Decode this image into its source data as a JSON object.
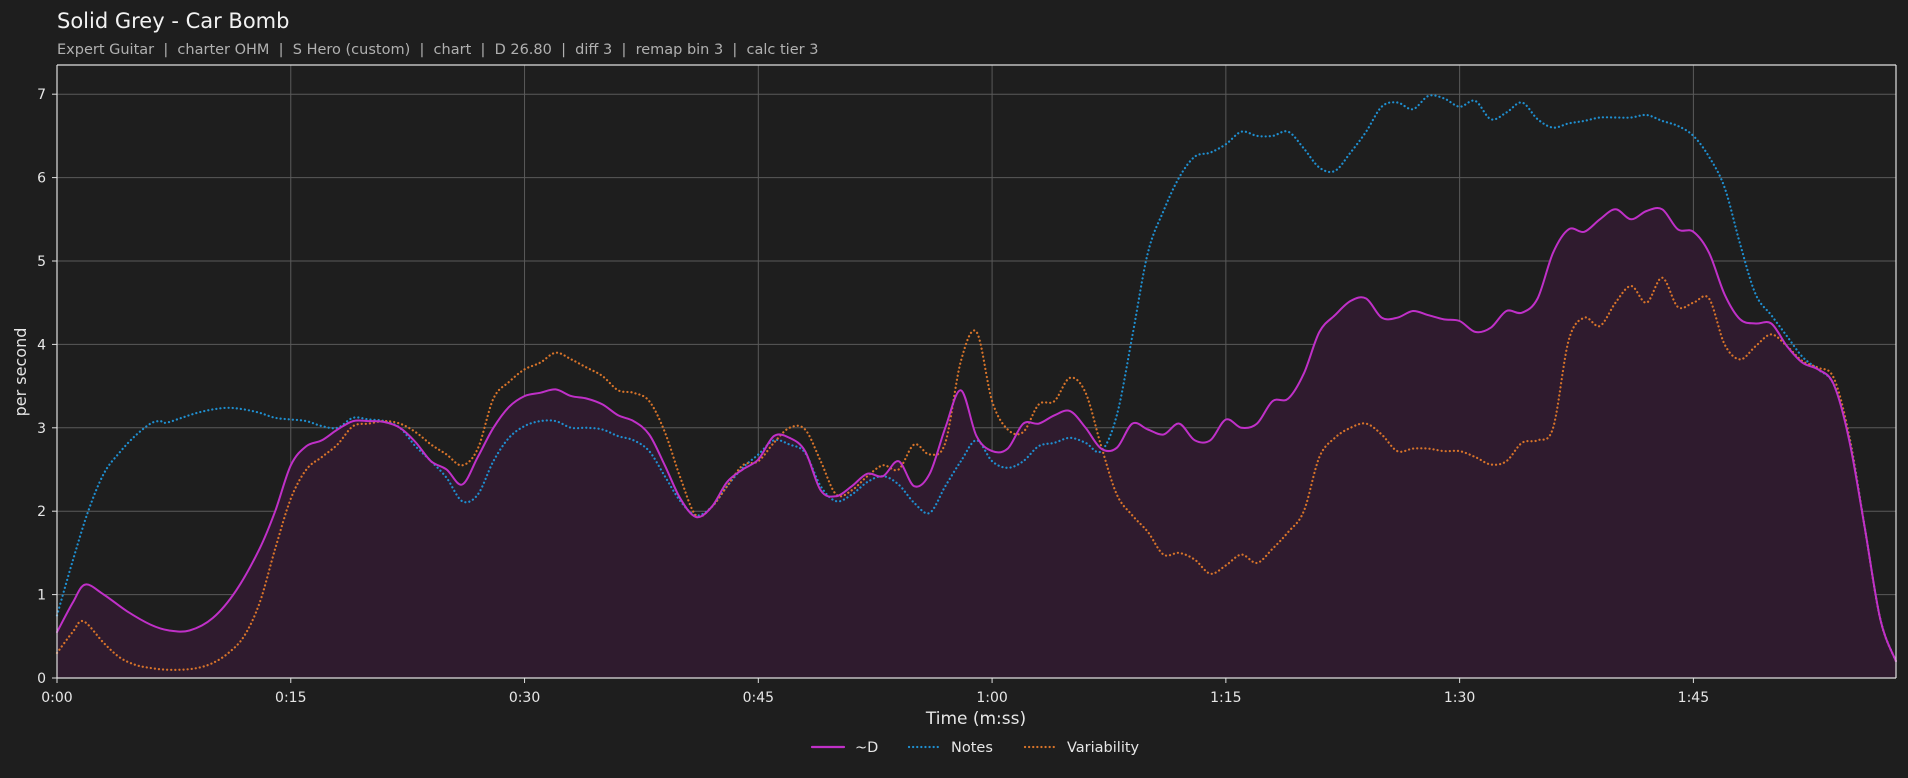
{
  "chart_data": {
    "type": "line",
    "title": "Solid Grey - Car Bomb",
    "subtitle": "Expert Guitar  |  charter OHM  |  S Hero (custom)  |  chart  |  D 26.80  |  diff 3  |  remap bin 3  |  calc tier 3",
    "xlabel": "Time (m:ss)",
    "ylabel": "per second",
    "xlim": [
      0,
      118
    ],
    "ylim": [
      0,
      7.35
    ],
    "x_ticks": [
      0,
      15,
      30,
      45,
      60,
      75,
      90,
      105
    ],
    "x_tick_labels": [
      "0:00",
      "0:15",
      "0:30",
      "0:45",
      "1:00",
      "1:15",
      "1:30",
      "1:45"
    ],
    "y_ticks": [
      0,
      1,
      2,
      3,
      4,
      5,
      6,
      7
    ],
    "y_tick_labels": [
      "0",
      "1",
      "2",
      "3",
      "4",
      "5",
      "6",
      "7"
    ],
    "grid": true,
    "legend_position": "bottom-center",
    "series": [
      {
        "name": "~D",
        "style": "solid",
        "fill": true,
        "color": "#c030c8",
        "x": [
          0,
          1,
          1.8,
          3,
          4.5,
          6,
          7.2,
          8.5,
          10,
          11.5,
          13,
          14,
          15,
          16,
          17,
          18,
          19,
          20,
          21,
          22,
          23,
          24,
          25,
          26,
          27,
          28,
          29,
          30,
          31,
          32,
          33,
          34,
          35,
          36,
          37,
          38,
          39,
          40,
          41,
          42,
          43,
          44,
          45,
          46,
          47,
          48,
          49,
          50,
          51,
          52,
          53,
          54,
          55,
          56,
          57,
          58,
          59,
          60,
          61,
          62,
          63,
          64,
          65,
          66,
          67,
          68,
          69,
          70,
          71,
          72,
          73,
          74,
          75,
          76,
          77,
          78,
          79,
          80,
          81,
          82,
          83,
          84,
          85,
          86,
          87,
          88,
          89,
          90,
          91,
          92,
          93,
          94,
          95,
          96,
          97,
          98,
          99,
          100,
          101,
          102,
          103,
          104,
          105,
          106,
          107,
          108,
          109,
          110,
          111,
          112,
          113,
          114,
          115,
          116,
          117,
          118
        ],
        "values": [
          0.55,
          0.9,
          1.12,
          1.0,
          0.8,
          0.64,
          0.57,
          0.57,
          0.72,
          1.05,
          1.55,
          2.0,
          2.55,
          2.78,
          2.85,
          2.98,
          3.08,
          3.08,
          3.07,
          3.0,
          2.83,
          2.6,
          2.5,
          2.32,
          2.65,
          3.0,
          3.25,
          3.38,
          3.42,
          3.46,
          3.38,
          3.35,
          3.28,
          3.15,
          3.08,
          2.92,
          2.55,
          2.15,
          1.93,
          2.05,
          2.35,
          2.5,
          2.62,
          2.9,
          2.88,
          2.72,
          2.25,
          2.18,
          2.3,
          2.45,
          2.42,
          2.6,
          2.3,
          2.45,
          3.0,
          3.45,
          2.9,
          2.72,
          2.75,
          3.05,
          3.05,
          3.15,
          3.2,
          3.0,
          2.75,
          2.76,
          3.05,
          2.98,
          2.92,
          3.05,
          2.85,
          2.85,
          3.1,
          3.0,
          3.05,
          3.32,
          3.35,
          3.65,
          4.15,
          4.35,
          4.52,
          4.55,
          4.32,
          4.32,
          4.4,
          4.35,
          4.3,
          4.28,
          4.15,
          4.2,
          4.4,
          4.38,
          4.55,
          5.1,
          5.38,
          5.35,
          5.5,
          5.62,
          5.5,
          5.6,
          5.62,
          5.38,
          5.35,
          5.1,
          4.6,
          4.3,
          4.25,
          4.25,
          3.98,
          3.78,
          3.7,
          3.52,
          2.85,
          1.8,
          0.7,
          0.2
        ]
      },
      {
        "name": "Notes",
        "style": "dotted",
        "fill": false,
        "color": "#1f8fd0",
        "x": [
          0,
          1,
          2,
          3,
          4,
          5,
          6,
          6.6,
          7,
          8,
          9,
          10,
          11,
          12,
          13,
          14,
          15,
          16,
          17,
          18,
          19,
          20,
          21,
          22,
          23,
          24,
          25,
          26,
          27,
          28,
          29,
          30,
          31,
          32,
          33,
          34,
          35,
          36,
          37,
          38,
          39,
          40,
          41,
          42,
          43,
          44,
          45,
          46,
          47,
          48,
          49,
          50,
          51,
          52,
          53,
          54,
          55,
          56,
          57,
          58,
          59,
          60,
          61,
          62,
          63,
          64,
          65,
          66,
          67,
          68,
          69,
          70,
          71,
          72,
          73,
          74,
          75,
          76,
          77,
          78,
          79,
          80,
          81,
          82,
          83,
          84,
          85,
          86,
          87,
          88,
          89,
          90,
          91,
          92,
          93,
          94,
          95,
          96,
          97,
          98,
          99,
          100,
          101,
          102,
          103,
          104,
          105,
          106,
          107,
          108,
          109,
          110,
          111,
          112,
          113,
          114,
          115,
          116,
          117,
          118
        ],
        "values": [
          0.75,
          1.4,
          2.0,
          2.45,
          2.7,
          2.9,
          3.05,
          3.08,
          3.06,
          3.12,
          3.18,
          3.22,
          3.24,
          3.22,
          3.18,
          3.12,
          3.1,
          3.08,
          3.02,
          3.0,
          3.12,
          3.1,
          3.08,
          3.0,
          2.78,
          2.6,
          2.4,
          2.12,
          2.2,
          2.6,
          2.88,
          3.02,
          3.08,
          3.08,
          3.0,
          3.0,
          2.98,
          2.9,
          2.85,
          2.72,
          2.42,
          2.12,
          1.95,
          2.05,
          2.3,
          2.52,
          2.68,
          2.85,
          2.8,
          2.7,
          2.3,
          2.12,
          2.2,
          2.35,
          2.42,
          2.32,
          2.1,
          1.98,
          2.3,
          2.6,
          2.85,
          2.6,
          2.52,
          2.6,
          2.78,
          2.82,
          2.88,
          2.82,
          2.72,
          3.15,
          4.1,
          5.1,
          5.6,
          6.0,
          6.25,
          6.3,
          6.4,
          6.55,
          6.5,
          6.5,
          6.55,
          6.35,
          6.12,
          6.08,
          6.3,
          6.55,
          6.85,
          6.9,
          6.82,
          6.98,
          6.95,
          6.85,
          6.92,
          6.7,
          6.78,
          6.9,
          6.7,
          6.6,
          6.65,
          6.68,
          6.72,
          6.72,
          6.72,
          6.75,
          6.68,
          6.62,
          6.5,
          6.25,
          5.88,
          5.2,
          4.6,
          4.35,
          4.1,
          3.85,
          3.7,
          3.52,
          2.9,
          1.8,
          0.7,
          0.2
        ]
      },
      {
        "name": "Variability",
        "style": "dotted",
        "fill": false,
        "color": "#d8742a",
        "x": [
          0,
          1,
          1.7,
          3,
          4,
          5,
          6,
          7,
          8,
          9,
          10,
          11,
          12,
          13,
          14,
          15,
          16,
          17,
          18,
          19,
          20,
          21,
          22,
          23,
          24,
          25,
          26,
          27,
          28,
          29,
          30,
          31,
          32,
          33,
          34,
          35,
          36,
          37,
          38,
          39,
          40,
          41,
          42,
          43,
          44,
          45,
          46,
          47,
          48,
          49,
          50,
          51,
          52,
          53,
          54,
          55,
          56,
          57,
          58,
          59,
          60,
          61,
          62,
          63,
          64,
          65,
          66,
          67,
          68,
          69,
          70,
          71,
          72,
          73,
          74,
          75,
          76,
          77,
          78,
          79,
          80,
          81,
          82,
          83,
          84,
          85,
          86,
          87,
          88,
          89,
          90,
          91,
          92,
          93,
          94,
          95,
          96,
          97,
          98,
          99,
          100,
          101,
          102,
          103,
          104,
          105,
          106,
          107,
          108,
          109,
          110,
          111,
          112,
          113,
          114,
          115,
          116,
          117,
          118
        ],
        "values": [
          0.3,
          0.55,
          0.68,
          0.42,
          0.25,
          0.16,
          0.12,
          0.1,
          0.1,
          0.12,
          0.18,
          0.3,
          0.5,
          0.9,
          1.55,
          2.15,
          2.5,
          2.65,
          2.8,
          3.02,
          3.05,
          3.08,
          3.05,
          2.95,
          2.8,
          2.68,
          2.55,
          2.75,
          3.35,
          3.55,
          3.7,
          3.78,
          3.9,
          3.82,
          3.72,
          3.62,
          3.45,
          3.42,
          3.32,
          2.95,
          2.4,
          1.95,
          2.05,
          2.3,
          2.55,
          2.6,
          2.82,
          3.0,
          2.98,
          2.6,
          2.2,
          2.25,
          2.42,
          2.55,
          2.5,
          2.8,
          2.68,
          2.82,
          3.8,
          4.15,
          3.32,
          2.98,
          2.95,
          3.28,
          3.32,
          3.6,
          3.42,
          2.78,
          2.2,
          1.95,
          1.75,
          1.48,
          1.5,
          1.42,
          1.25,
          1.35,
          1.48,
          1.38,
          1.55,
          1.75,
          2.0,
          2.65,
          2.88,
          3.0,
          3.05,
          2.92,
          2.72,
          2.75,
          2.75,
          2.72,
          2.72,
          2.65,
          2.56,
          2.6,
          2.82,
          2.85,
          3.0,
          4.05,
          4.32,
          4.22,
          4.5,
          4.7,
          4.5,
          4.8,
          4.45,
          4.5,
          4.55,
          4.0,
          3.82,
          3.98,
          4.12,
          3.98,
          3.8,
          3.72,
          3.6,
          2.9,
          1.8,
          0.7,
          0.2
        ]
      }
    ]
  }
}
